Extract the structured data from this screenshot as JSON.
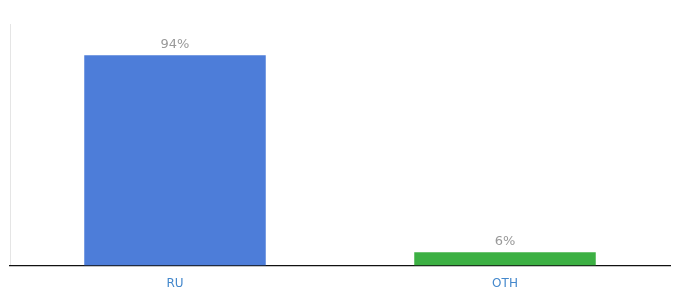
{
  "chart_data": {
    "type": "bar",
    "categories": [
      "RU",
      "OTH"
    ],
    "values": [
      94,
      6
    ],
    "value_labels": [
      "94%",
      "6%"
    ],
    "data_labels": true,
    "colors": [
      "#4d7dd9",
      "#3cb043"
    ],
    "ylim": [
      0,
      108
    ],
    "grid": false,
    "tick_labels": "x"
  }
}
